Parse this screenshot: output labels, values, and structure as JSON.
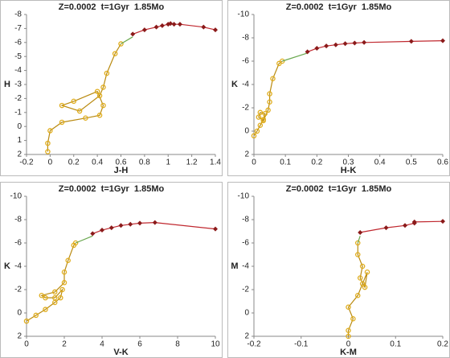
{
  "chart_data": [
    {
      "type": "line",
      "title": "Z=0.0002  t=1Gyr  1.85Mo",
      "x_label": "J-H",
      "y_label": "H",
      "xlim": [
        -0.2,
        1.4
      ],
      "xticks": [
        -0.2,
        0,
        0.2,
        0.4,
        0.6,
        0.8,
        1,
        1.2,
        1.4
      ],
      "ylim": [
        2,
        -8
      ],
      "yticks": [
        2,
        1,
        0,
        -1,
        -2,
        -3,
        -4,
        -5,
        -6,
        -7,
        -8
      ],
      "series": [
        {
          "color": "#e0ad1c",
          "marker": "circle",
          "x": [
            -0.02,
            -0.02,
            0,
            0.1,
            0.3,
            0.42,
            0.45,
            0.4,
            0.2,
            0.1,
            0.25,
            0.42,
            0.45,
            0.48,
            0.55,
            0.6
          ],
          "values": [
            1.8,
            1.2,
            0.3,
            -0.3,
            -0.6,
            -0.8,
            -1.5,
            -2.5,
            -1.8,
            -1.5,
            -1.1,
            -2.2,
            -2.8,
            -3.8,
            -5.2,
            -5.9
          ]
        },
        {
          "color": "#6aa84f",
          "marker": "none",
          "x": [
            0.6,
            0.7
          ],
          "values": [
            -5.9,
            -6.4
          ]
        },
        {
          "color": "#c0282f",
          "marker": "diamond",
          "x": [
            0.7,
            0.8,
            0.9,
            0.95,
            1.0,
            1.02,
            1.05,
            1.1,
            1.3,
            1.4
          ],
          "values": [
            -6.6,
            -6.9,
            -7.1,
            -7.2,
            -7.3,
            -7.35,
            -7.3,
            -7.3,
            -7.1,
            -6.9
          ]
        }
      ]
    },
    {
      "type": "line",
      "title": "Z=0.0002  t=1Gyr  1.85Mo",
      "x_label": "H-K",
      "y_label": "K",
      "xlim": [
        0,
        0.6
      ],
      "xticks": [
        0,
        0.1,
        0.2,
        0.3,
        0.4,
        0.5,
        0.6
      ],
      "ylim": [
        2,
        -10
      ],
      "yticks": [
        2,
        0,
        -2,
        -4,
        -6,
        -8,
        -10
      ],
      "series": [
        {
          "color": "#e0ad1c",
          "marker": "circle",
          "x": [
            0,
            0.01,
            0.02,
            0.03,
            0.035,
            0.02,
            0.015,
            0.03,
            0.045,
            0.05,
            0.05,
            0.06,
            0.08,
            0.09
          ],
          "values": [
            0.4,
            0,
            -0.5,
            -1,
            -1.5,
            -1.6,
            -1.2,
            -0.9,
            -1.8,
            -2.5,
            -3.2,
            -4.5,
            -5.8,
            -6
          ]
        },
        {
          "color": "#6aa84f",
          "marker": "none",
          "x": [
            0.09,
            0.17
          ],
          "values": [
            -6,
            -6.7
          ]
        },
        {
          "color": "#c0282f",
          "marker": "diamond",
          "x": [
            0.17,
            0.2,
            0.23,
            0.26,
            0.29,
            0.32,
            0.35,
            0.5,
            0.6
          ],
          "values": [
            -6.8,
            -7.1,
            -7.3,
            -7.4,
            -7.5,
            -7.55,
            -7.6,
            -7.7,
            -7.75
          ]
        }
      ]
    },
    {
      "type": "line",
      "title": "Z=0.0002  t=1Gyr  1.85Mo",
      "x_label": "V-K",
      "y_label": "K",
      "xlim": [
        0,
        10
      ],
      "xticks": [
        0,
        2,
        4,
        6,
        8,
        10
      ],
      "ylim": [
        2,
        -10
      ],
      "yticks": [
        2,
        0,
        -2,
        -4,
        -6,
        -8,
        -10
      ],
      "series": [
        {
          "color": "#e0ad1c",
          "marker": "circle",
          "x": [
            0,
            0.5,
            1,
            1.5,
            1.8,
            1.9,
            1.5,
            1,
            0.8,
            1.5,
            2,
            2,
            2.2,
            2.5,
            2.6
          ],
          "values": [
            0.7,
            0.2,
            -0.3,
            -0.9,
            -1.3,
            -2,
            -1.3,
            -1.3,
            -1.5,
            -1.8,
            -2.6,
            -3.5,
            -4.5,
            -5.8,
            -6
          ]
        },
        {
          "color": "#6aa84f",
          "marker": "none",
          "x": [
            2.6,
            3.5
          ],
          "values": [
            -6,
            -6.6
          ]
        },
        {
          "color": "#c0282f",
          "marker": "diamond",
          "x": [
            3.5,
            4,
            4.5,
            5,
            5.5,
            6,
            6.8,
            10
          ],
          "values": [
            -6.8,
            -7.1,
            -7.3,
            -7.5,
            -7.6,
            -7.7,
            -7.75,
            -7.2
          ]
        }
      ]
    },
    {
      "type": "line",
      "title": "Z=0.0002  t=1Gyr  1.85Mo",
      "x_label": "K-M",
      "y_label": "M",
      "xlim": [
        -0.2,
        0.2
      ],
      "xticks": [
        -0.2,
        -0.1,
        0,
        0.1,
        0.2
      ],
      "ylim": [
        2,
        -10
      ],
      "yticks": [
        2,
        0,
        -2,
        -4,
        -6,
        -8,
        -10
      ],
      "series": [
        {
          "color": "#e0ad1c",
          "marker": "circle",
          "x": [
            0,
            0,
            0.01,
            0,
            0.02,
            0.03,
            0.04,
            0.035,
            0.025,
            0.03,
            0.02,
            0.02
          ],
          "values": [
            2,
            1.5,
            0.5,
            -0.5,
            -1.5,
            -2.5,
            -3.5,
            -2.2,
            -3,
            -4,
            -5,
            -6
          ]
        },
        {
          "color": "#6aa84f",
          "marker": "none",
          "x": [
            0.02,
            0.025
          ],
          "values": [
            -6,
            -6.6
          ]
        },
        {
          "color": "#c0282f",
          "marker": "diamond",
          "x": [
            0.025,
            0.08,
            0.12,
            0.14,
            0.14,
            0.2
          ],
          "values": [
            -6.9,
            -7.3,
            -7.5,
            -7.7,
            -7.8,
            -7.85
          ]
        }
      ]
    }
  ]
}
